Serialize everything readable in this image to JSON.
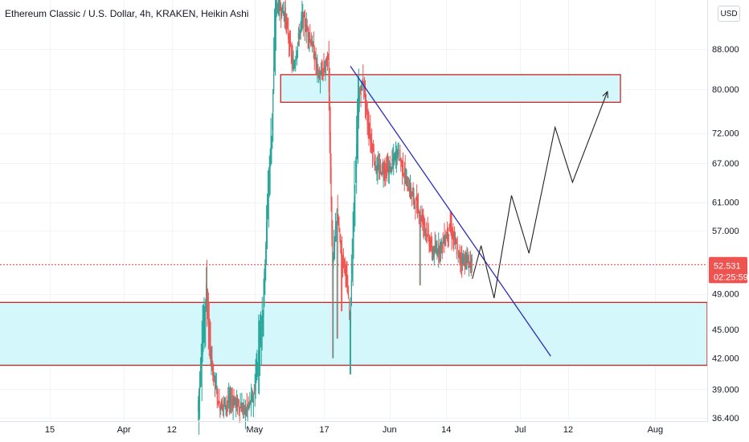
{
  "chart_data": {
    "type": "candlestick",
    "title": "Ethereum Classic / U.S. Dollar, 4h, KRAKEN, Heikin Ashi",
    "currency": "USD",
    "y_scale": "log",
    "ylim": [
      36.2,
      99
    ],
    "y_ticks": [
      {
        "v": 88,
        "label": "88.000"
      },
      {
        "v": 80,
        "label": "80.000"
      },
      {
        "v": 72,
        "label": "72.000"
      },
      {
        "v": 67,
        "label": "67.000"
      },
      {
        "v": 61,
        "label": "61.000"
      },
      {
        "v": 57,
        "label": "57.000"
      },
      {
        "v": 49,
        "label": "49.000"
      },
      {
        "v": 45,
        "label": "45.000"
      },
      {
        "v": 42,
        "label": "42.000"
      },
      {
        "v": 39,
        "label": "39.000"
      },
      {
        "v": 36.4,
        "label": "36.400"
      }
    ],
    "x_ticks": [
      {
        "d": "2021-03-15",
        "label": "15"
      },
      {
        "d": "2021-04-01",
        "label": "Apr"
      },
      {
        "d": "2021-04-12",
        "label": "12"
      },
      {
        "d": "2021-05-01",
        "label": "May"
      },
      {
        "d": "2021-05-17",
        "label": "17"
      },
      {
        "d": "2021-06-01",
        "label": "Jun"
      },
      {
        "d": "2021-06-14",
        "label": "14"
      },
      {
        "d": "2021-07-01",
        "label": "Jul"
      },
      {
        "d": "2021-07-12",
        "label": "12"
      },
      {
        "d": "2021-08-01",
        "label": "Aug"
      }
    ],
    "series": [
      {
        "name": "ETCUSD",
        "path": [
          {
            "d": "2021-04-18",
            "v": 37
          },
          {
            "d": "2021-04-20",
            "v": 49.5
          },
          {
            "d": "2021-04-21",
            "v": 42
          },
          {
            "d": "2021-04-23",
            "v": 37.5
          },
          {
            "d": "2021-04-26",
            "v": 38
          },
          {
            "d": "2021-04-29",
            "v": 37
          },
          {
            "d": "2021-05-01",
            "v": 38.5
          },
          {
            "d": "2021-05-03",
            "v": 47
          },
          {
            "d": "2021-05-04",
            "v": 60
          },
          {
            "d": "2021-05-05",
            "v": 72
          },
          {
            "d": "2021-05-06",
            "v": 98
          },
          {
            "d": "2021-05-08",
            "v": 96
          },
          {
            "d": "2021-05-10",
            "v": 84
          },
          {
            "d": "2021-05-12",
            "v": 95
          },
          {
            "d": "2021-05-14",
            "v": 90
          },
          {
            "d": "2021-05-16",
            "v": 82
          },
          {
            "d": "2021-05-18",
            "v": 86
          },
          {
            "d": "2021-05-19",
            "v": 52
          },
          {
            "d": "2021-05-20",
            "v": 60
          },
          {
            "d": "2021-05-21",
            "v": 54
          },
          {
            "d": "2021-05-22",
            "v": 52
          },
          {
            "d": "2021-05-23",
            "v": 46
          },
          {
            "d": "2021-05-24",
            "v": 62
          },
          {
            "d": "2021-05-25",
            "v": 78
          },
          {
            "d": "2021-05-26",
            "v": 82
          },
          {
            "d": "2021-05-27",
            "v": 74
          },
          {
            "d": "2021-05-29",
            "v": 66
          },
          {
            "d": "2021-06-01",
            "v": 66
          },
          {
            "d": "2021-06-03",
            "v": 69
          },
          {
            "d": "2021-06-05",
            "v": 64
          },
          {
            "d": "2021-06-07",
            "v": 61
          },
          {
            "d": "2021-06-09",
            "v": 58
          },
          {
            "d": "2021-06-11",
            "v": 54
          },
          {
            "d": "2021-06-13",
            "v": 55
          },
          {
            "d": "2021-06-15",
            "v": 57.5
          },
          {
            "d": "2021-06-17",
            "v": 53.5
          },
          {
            "d": "2021-06-20",
            "v": 52.6
          }
        ]
      }
    ],
    "last_price": {
      "value": 52.531,
      "label": "52.531",
      "countdown": "02:25:59"
    },
    "prev_close": {
      "value": 52.598,
      "label": "52.598"
    },
    "annotations": {
      "resistance_zone": {
        "x0": "2021-05-07",
        "x1": "2021-07-24",
        "y0": 77.5,
        "y1": 82.8
      },
      "support_zone": {
        "x0": "2021-03-01",
        "x1": "2021-08-15",
        "y0": 41.3,
        "y1": 48
      },
      "trendline": [
        {
          "d": "2021-05-23",
          "v": 84.5
        },
        {
          "d": "2021-07-08",
          "v": 42.2
        }
      ],
      "projection": [
        {
          "d": "2021-06-20",
          "v": 50.8
        },
        {
          "d": "2021-06-22",
          "v": 55
        },
        {
          "d": "2021-06-25",
          "v": 48.5
        },
        {
          "d": "2021-06-29",
          "v": 62
        },
        {
          "d": "2021-07-03",
          "v": 54
        },
        {
          "d": "2021-07-09",
          "v": 73
        },
        {
          "d": "2021-07-13",
          "v": 64
        },
        {
          "d": "2021-07-21",
          "v": 79.5
        }
      ]
    },
    "colors": {
      "up": "#26a69a",
      "down": "#ef5350",
      "zone_fill": "#d4f7fb",
      "zone_border": "#cc2222",
      "trendline": "#2b2bbd",
      "projection": "#222222",
      "price_tag": "#ef5350"
    }
  }
}
